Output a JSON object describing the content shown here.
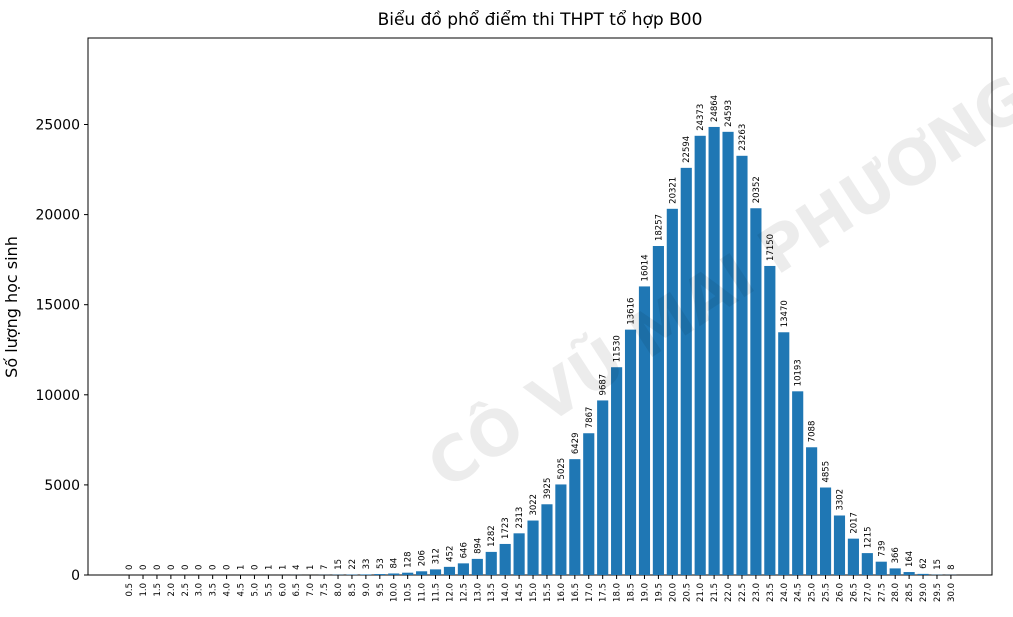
{
  "chart_data": {
    "type": "bar",
    "title": "Biểu đồ phổ điểm thi THPT tổ hợp B00",
    "xlabel": "",
    "ylabel": "Số lượng học sinh",
    "ylim": [
      0,
      29800
    ],
    "yticks": [
      0,
      5000,
      10000,
      15000,
      20000,
      25000
    ],
    "bar_color": "#1f77b4",
    "grid": false,
    "categories": [
      "0.5",
      "1.0",
      "1.5",
      "2.0",
      "2.5",
      "3.0",
      "3.5",
      "4.0",
      "4.5",
      "5.0",
      "5.5",
      "6.0",
      "6.5",
      "7.0",
      "7.5",
      "8.0",
      "8.5",
      "9.0",
      "9.5",
      "10.0",
      "10.5",
      "11.0",
      "11.5",
      "12.0",
      "12.5",
      "13.0",
      "13.5",
      "14.0",
      "14.5",
      "15.0",
      "15.5",
      "16.0",
      "16.5",
      "17.0",
      "17.5",
      "18.0",
      "18.5",
      "19.0",
      "19.5",
      "20.0",
      "20.5",
      "21.0",
      "21.5",
      "22.0",
      "22.5",
      "23.0",
      "23.5",
      "24.0",
      "24.5",
      "25.0",
      "25.5",
      "26.0",
      "26.5",
      "27.0",
      "27.5",
      "28.0",
      "28.5",
      "29.0",
      "29.5",
      "30.0"
    ],
    "values": [
      0,
      0,
      0,
      0,
      0,
      0,
      0,
      0,
      1,
      0,
      1,
      1,
      4,
      1,
      7,
      15,
      22,
      33,
      53,
      84,
      128,
      206,
      312,
      452,
      646,
      894,
      1282,
      1723,
      2313,
      3022,
      3925,
      5025,
      6429,
      7867,
      9687,
      11530,
      13616,
      16014,
      18257,
      20321,
      22594,
      24373,
      24864,
      24593,
      23263,
      20352,
      17150,
      13470,
      10193,
      7088,
      4855,
      3302,
      2017,
      1215,
      739,
      366,
      164,
      62,
      15,
      8
    ]
  },
  "watermark": "CÔ VŨ MAI PHƯƠNG"
}
